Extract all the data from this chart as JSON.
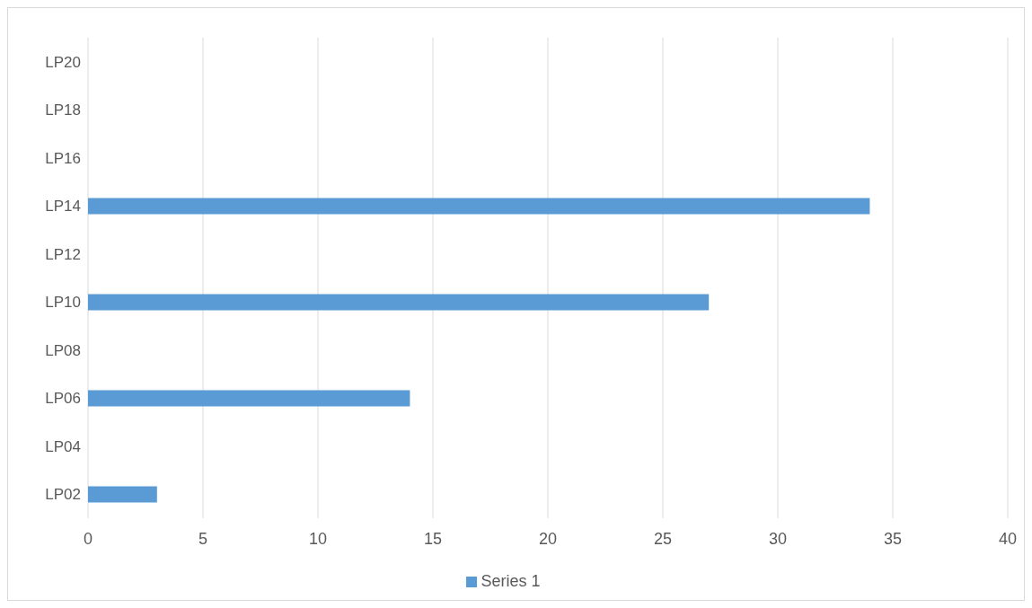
{
  "chart_data": {
    "type": "bar",
    "orientation": "horizontal",
    "categories": [
      "LP20",
      "LP18",
      "LP16",
      "LP14",
      "LP12",
      "LP10",
      "LP08",
      "LP06",
      "LP04",
      "LP02"
    ],
    "series": [
      {
        "name": "Series 1",
        "color": "#5b9bd5",
        "values": [
          null,
          null,
          null,
          34,
          null,
          27,
          null,
          14,
          null,
          3
        ]
      }
    ],
    "xlim": [
      0,
      40
    ],
    "xticks": [
      0,
      5,
      10,
      15,
      20,
      25,
      30,
      35,
      40
    ],
    "grid": "x",
    "legend": "bottom"
  }
}
